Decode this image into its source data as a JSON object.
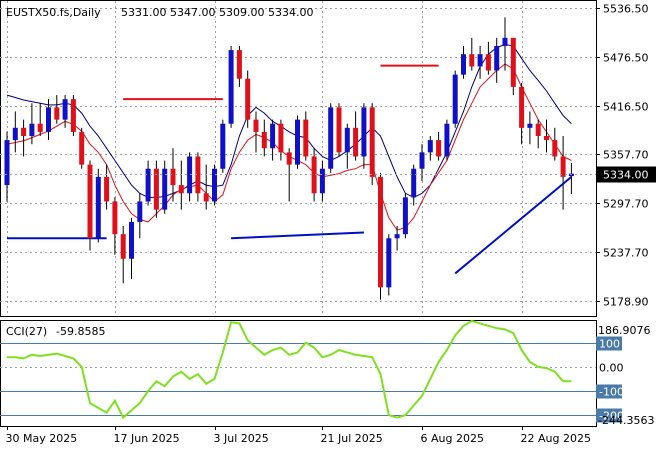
{
  "header": {
    "symbol": "EUSTX50.fs,Daily",
    "ohlc": "5331.00 5347.00 5309.00 5334.00"
  },
  "colors": {
    "up": "#1010c8",
    "down": "#e0101a",
    "wick": "#000000",
    "ma_fast": "#e0101a",
    "ma_slow": "#000080",
    "level_red": "#e0101a",
    "level_blue": "#0010c0",
    "cci": "#7fe01f",
    "current_price_bg": "#000000",
    "cci_level_box": "#4a7aa8"
  },
  "chart_data": {
    "type": "candlestick",
    "price_axis": {
      "min": 5160,
      "max": 5545,
      "ticks": [
        "5536.50",
        "5476.50",
        "5416.50",
        "5357.70",
        "5297.70",
        "5237.70",
        "5178.90"
      ],
      "tick_values": [
        5536.5,
        5476.5,
        5416.5,
        5357.7,
        5297.7,
        5237.7,
        5178.9
      ],
      "current_price_label": "5334.00",
      "current_price": 5334.0
    },
    "date_labels": [
      {
        "label": "30 May 2025",
        "index": 0
      },
      {
        "label": "17 Jun 2025",
        "index": 13
      },
      {
        "label": "3 Jul 2025",
        "index": 25
      },
      {
        "label": "21 Jul 2025",
        "index": 38
      },
      {
        "label": "6 Aug 2025",
        "index": 50
      },
      {
        "label": "22 Aug 2025",
        "index": 62
      }
    ],
    "candles": [
      [
        5320,
        5385,
        5300,
        5375
      ],
      [
        5375,
        5410,
        5360,
        5390
      ],
      [
        5390,
        5400,
        5355,
        5380
      ],
      [
        5380,
        5420,
        5370,
        5395
      ],
      [
        5395,
        5420,
        5380,
        5385
      ],
      [
        5385,
        5425,
        5375,
        5415
      ],
      [
        5415,
        5430,
        5395,
        5400
      ],
      [
        5400,
        5430,
        5390,
        5425
      ],
      [
        5425,
        5430,
        5380,
        5385
      ],
      [
        5385,
        5390,
        5340,
        5345
      ],
      [
        5345,
        5350,
        5240,
        5255
      ],
      [
        5255,
        5340,
        5250,
        5330
      ],
      [
        5330,
        5345,
        5290,
        5300
      ],
      [
        5300,
        5305,
        5235,
        5260
      ],
      [
        5260,
        5270,
        5200,
        5230
      ],
      [
        5230,
        5280,
        5205,
        5275
      ],
      [
        5275,
        5310,
        5255,
        5300
      ],
      [
        5300,
        5350,
        5295,
        5340
      ],
      [
        5340,
        5350,
        5280,
        5290
      ],
      [
        5290,
        5350,
        5285,
        5340
      ],
      [
        5340,
        5365,
        5300,
        5320
      ],
      [
        5320,
        5350,
        5290,
        5310
      ],
      [
        5310,
        5360,
        5300,
        5355
      ],
      [
        5355,
        5360,
        5300,
        5310
      ],
      [
        5310,
        5345,
        5290,
        5300
      ],
      [
        5300,
        5345,
        5295,
        5340
      ],
      [
        5340,
        5400,
        5335,
        5395
      ],
      [
        5395,
        5490,
        5390,
        5485
      ],
      [
        5485,
        5490,
        5440,
        5450
      ],
      [
        5450,
        5460,
        5390,
        5400
      ],
      [
        5400,
        5410,
        5360,
        5385
      ],
      [
        5385,
        5400,
        5355,
        5365
      ],
      [
        5365,
        5400,
        5350,
        5395
      ],
      [
        5395,
        5400,
        5350,
        5360
      ],
      [
        5360,
        5365,
        5300,
        5345
      ],
      [
        5345,
        5405,
        5340,
        5400
      ],
      [
        5400,
        5410,
        5350,
        5355
      ],
      [
        5355,
        5365,
        5300,
        5310
      ],
      [
        5310,
        5350,
        5300,
        5340
      ],
      [
        5340,
        5420,
        5335,
        5415
      ],
      [
        5415,
        5420,
        5355,
        5360
      ],
      [
        5360,
        5395,
        5340,
        5390
      ],
      [
        5390,
        5410,
        5350,
        5355
      ],
      [
        5355,
        5420,
        5340,
        5415
      ],
      [
        5415,
        5420,
        5320,
        5330
      ],
      [
        5330,
        5335,
        5180,
        5195
      ],
      [
        5195,
        5260,
        5185,
        5255
      ],
      [
        5255,
        5270,
        5240,
        5260
      ],
      [
        5260,
        5310,
        5255,
        5305
      ],
      [
        5305,
        5345,
        5295,
        5340
      ],
      [
        5340,
        5370,
        5325,
        5360
      ],
      [
        5360,
        5380,
        5350,
        5375
      ],
      [
        5375,
        5385,
        5350,
        5355
      ],
      [
        5355,
        5400,
        5350,
        5395
      ],
      [
        5395,
        5460,
        5390,
        5455
      ],
      [
        5455,
        5490,
        5450,
        5480
      ],
      [
        5480,
        5500,
        5460,
        5465
      ],
      [
        5465,
        5490,
        5450,
        5480
      ],
      [
        5480,
        5495,
        5455,
        5460
      ],
      [
        5460,
        5500,
        5445,
        5490
      ],
      [
        5490,
        5525,
        5460,
        5500
      ],
      [
        5500,
        5500,
        5430,
        5440
      ],
      [
        5440,
        5445,
        5370,
        5390
      ],
      [
        5390,
        5410,
        5370,
        5395
      ],
      [
        5395,
        5400,
        5365,
        5380
      ],
      [
        5380,
        5400,
        5360,
        5375
      ],
      [
        5375,
        5390,
        5350,
        5355
      ],
      [
        5355,
        5380,
        5290,
        5330
      ],
      [
        5331,
        5347,
        5309,
        5334
      ]
    ],
    "ma_fast": [
      5370,
      5372,
      5374,
      5378,
      5382,
      5386,
      5392,
      5398,
      5394,
      5386,
      5370,
      5360,
      5345,
      5320,
      5300,
      5285,
      5278,
      5275,
      5285,
      5295,
      5308,
      5315,
      5318,
      5320,
      5310,
      5300,
      5308,
      5340,
      5360,
      5375,
      5382,
      5378,
      5372,
      5362,
      5355,
      5350,
      5345,
      5335,
      5330,
      5332,
      5334,
      5338,
      5340,
      5345,
      5345,
      5310,
      5280,
      5265,
      5268,
      5280,
      5300,
      5320,
      5335,
      5350,
      5375,
      5400,
      5420,
      5440,
      5450,
      5460,
      5468,
      5462,
      5440,
      5420,
      5400,
      5385,
      5370,
      5355,
      5350
    ],
    "ma_slow": [
      5430,
      5427,
      5424,
      5422,
      5420,
      5418,
      5418,
      5420,
      5418,
      5408,
      5392,
      5380,
      5365,
      5350,
      5335,
      5320,
      5310,
      5305,
      5305,
      5306,
      5310,
      5314,
      5320,
      5325,
      5320,
      5318,
      5320,
      5345,
      5380,
      5405,
      5415,
      5408,
      5398,
      5392,
      5385,
      5380,
      5378,
      5365,
      5355,
      5350,
      5355,
      5362,
      5370,
      5380,
      5390,
      5380,
      5355,
      5330,
      5310,
      5305,
      5310,
      5320,
      5340,
      5360,
      5385,
      5410,
      5440,
      5465,
      5480,
      5488,
      5492,
      5490,
      5475,
      5460,
      5448,
      5435,
      5420,
      5405,
      5395
    ],
    "level_lines": [
      {
        "color_key": "level_red",
        "from_index": 14,
        "to_index": 26,
        "values": [
          5425,
          5425
        ]
      },
      {
        "color_key": "level_red",
        "from_index": 45,
        "to_index": 52,
        "values": [
          5466,
          5466
        ]
      },
      {
        "color_key": "level_blue",
        "from_index": 0,
        "to_index": 12,
        "values": [
          5255,
          5255
        ]
      },
      {
        "color_key": "level_blue",
        "from_index": 27,
        "to_index": 43,
        "values": [
          5255,
          5262
        ]
      },
      {
        "color_key": "level_blue",
        "from_index": 54,
        "to_index": 68,
        "values": [
          5212,
          5330
        ]
      }
    ],
    "cci": {
      "label": "CCI(27)",
      "value_label": "-59.8585",
      "max_label": "186.9076",
      "min_label": "-244.3563",
      "axis_min": -245,
      "axis_max": 190,
      "ticks": [
        "100",
        "0.00",
        "-100",
        "-200"
      ],
      "tick_values": [
        100,
        0,
        -100,
        -200
      ],
      "boxed_ticks": [
        "100",
        "-100",
        "-200"
      ],
      "values": [
        40,
        40,
        35,
        50,
        45,
        50,
        55,
        45,
        35,
        0,
        -150,
        -170,
        -190,
        -140,
        -210,
        -180,
        -150,
        -100,
        -60,
        -80,
        -40,
        -20,
        -50,
        -30,
        -70,
        -50,
        60,
        185,
        180,
        110,
        80,
        50,
        70,
        80,
        50,
        60,
        100,
        80,
        40,
        50,
        70,
        60,
        50,
        45,
        40,
        -30,
        -200,
        -210,
        -200,
        -160,
        -120,
        -50,
        20,
        70,
        130,
        170,
        190,
        180,
        170,
        160,
        155,
        140,
        70,
        20,
        0,
        -5,
        -20,
        -60,
        -60
      ]
    }
  }
}
